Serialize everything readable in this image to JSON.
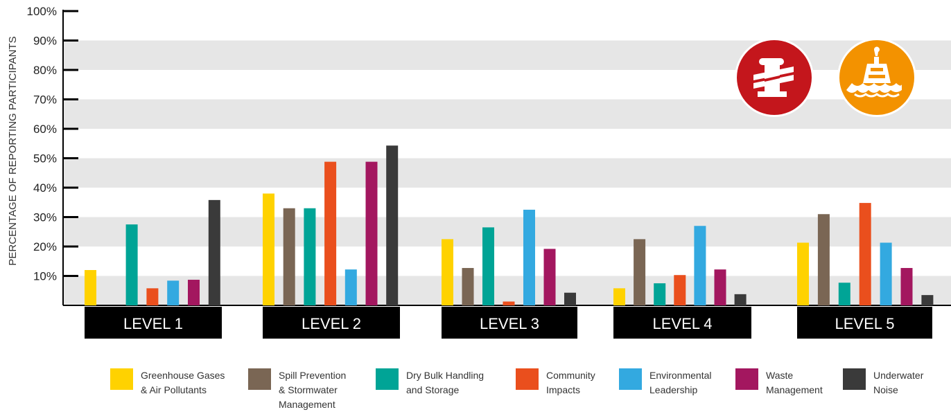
{
  "chart_data": {
    "type": "bar",
    "ylabel": "PERCENTAGE OF REPORTING PARTICIPANTS",
    "ylim": [
      0,
      100
    ],
    "yticks": [
      {
        "value": 100,
        "label": "100%"
      },
      {
        "value": 90,
        "label": "90%"
      },
      {
        "value": 80,
        "label": "80%"
      },
      {
        "value": 70,
        "label": "70%"
      },
      {
        "value": 60,
        "label": "60%"
      },
      {
        "value": 50,
        "label": "50%"
      },
      {
        "value": 40,
        "label": "40%"
      },
      {
        "value": 30,
        "label": "30%"
      },
      {
        "value": 20,
        "label": "20%"
      },
      {
        "value": 10,
        "label": "10%"
      }
    ],
    "grid": "alternating horizontal bands",
    "legend_position": "bottom",
    "categories": [
      "LEVEL 1",
      "LEVEL 2",
      "LEVEL 3",
      "LEVEL 4",
      "LEVEL 5"
    ],
    "series": [
      {
        "name": "Greenhouse Gases\n& Air Pollutants",
        "color": "#FFD200",
        "values": [
          12,
          38,
          22.5,
          5.8,
          21.3
        ]
      },
      {
        "name": "Spill Prevention\n& Stormwater\nManagement",
        "color": "#7A6654",
        "values": [
          0,
          33,
          12.7,
          22.5,
          31
        ]
      },
      {
        "name": "Dry Bulk Handling\nand Storage",
        "color": "#00A496",
        "values": [
          27.5,
          33,
          26.5,
          7.5,
          7.7
        ]
      },
      {
        "name": "Community\nImpacts",
        "color": "#EA4F1D",
        "values": [
          5.8,
          48.8,
          1.3,
          10.3,
          34.8
        ]
      },
      {
        "name": "Environmental\nLeadership",
        "color": "#33A9E0",
        "values": [
          8.4,
          12.2,
          32.5,
          27,
          21.3
        ]
      },
      {
        "name": "Waste\nManagement",
        "color": "#A3175F",
        "values": [
          8.7,
          48.8,
          19.2,
          12.2,
          12.7
        ]
      },
      {
        "name": "Underwater\nNoise",
        "color": "#3A3A3A",
        "values": [
          35.8,
          54.3,
          4.3,
          3.8,
          3.5
        ]
      }
    ],
    "badges": [
      {
        "icon": "bollard-icon",
        "color": "#C4161C"
      },
      {
        "icon": "buoy-icon",
        "color": "#F39200"
      }
    ]
  }
}
